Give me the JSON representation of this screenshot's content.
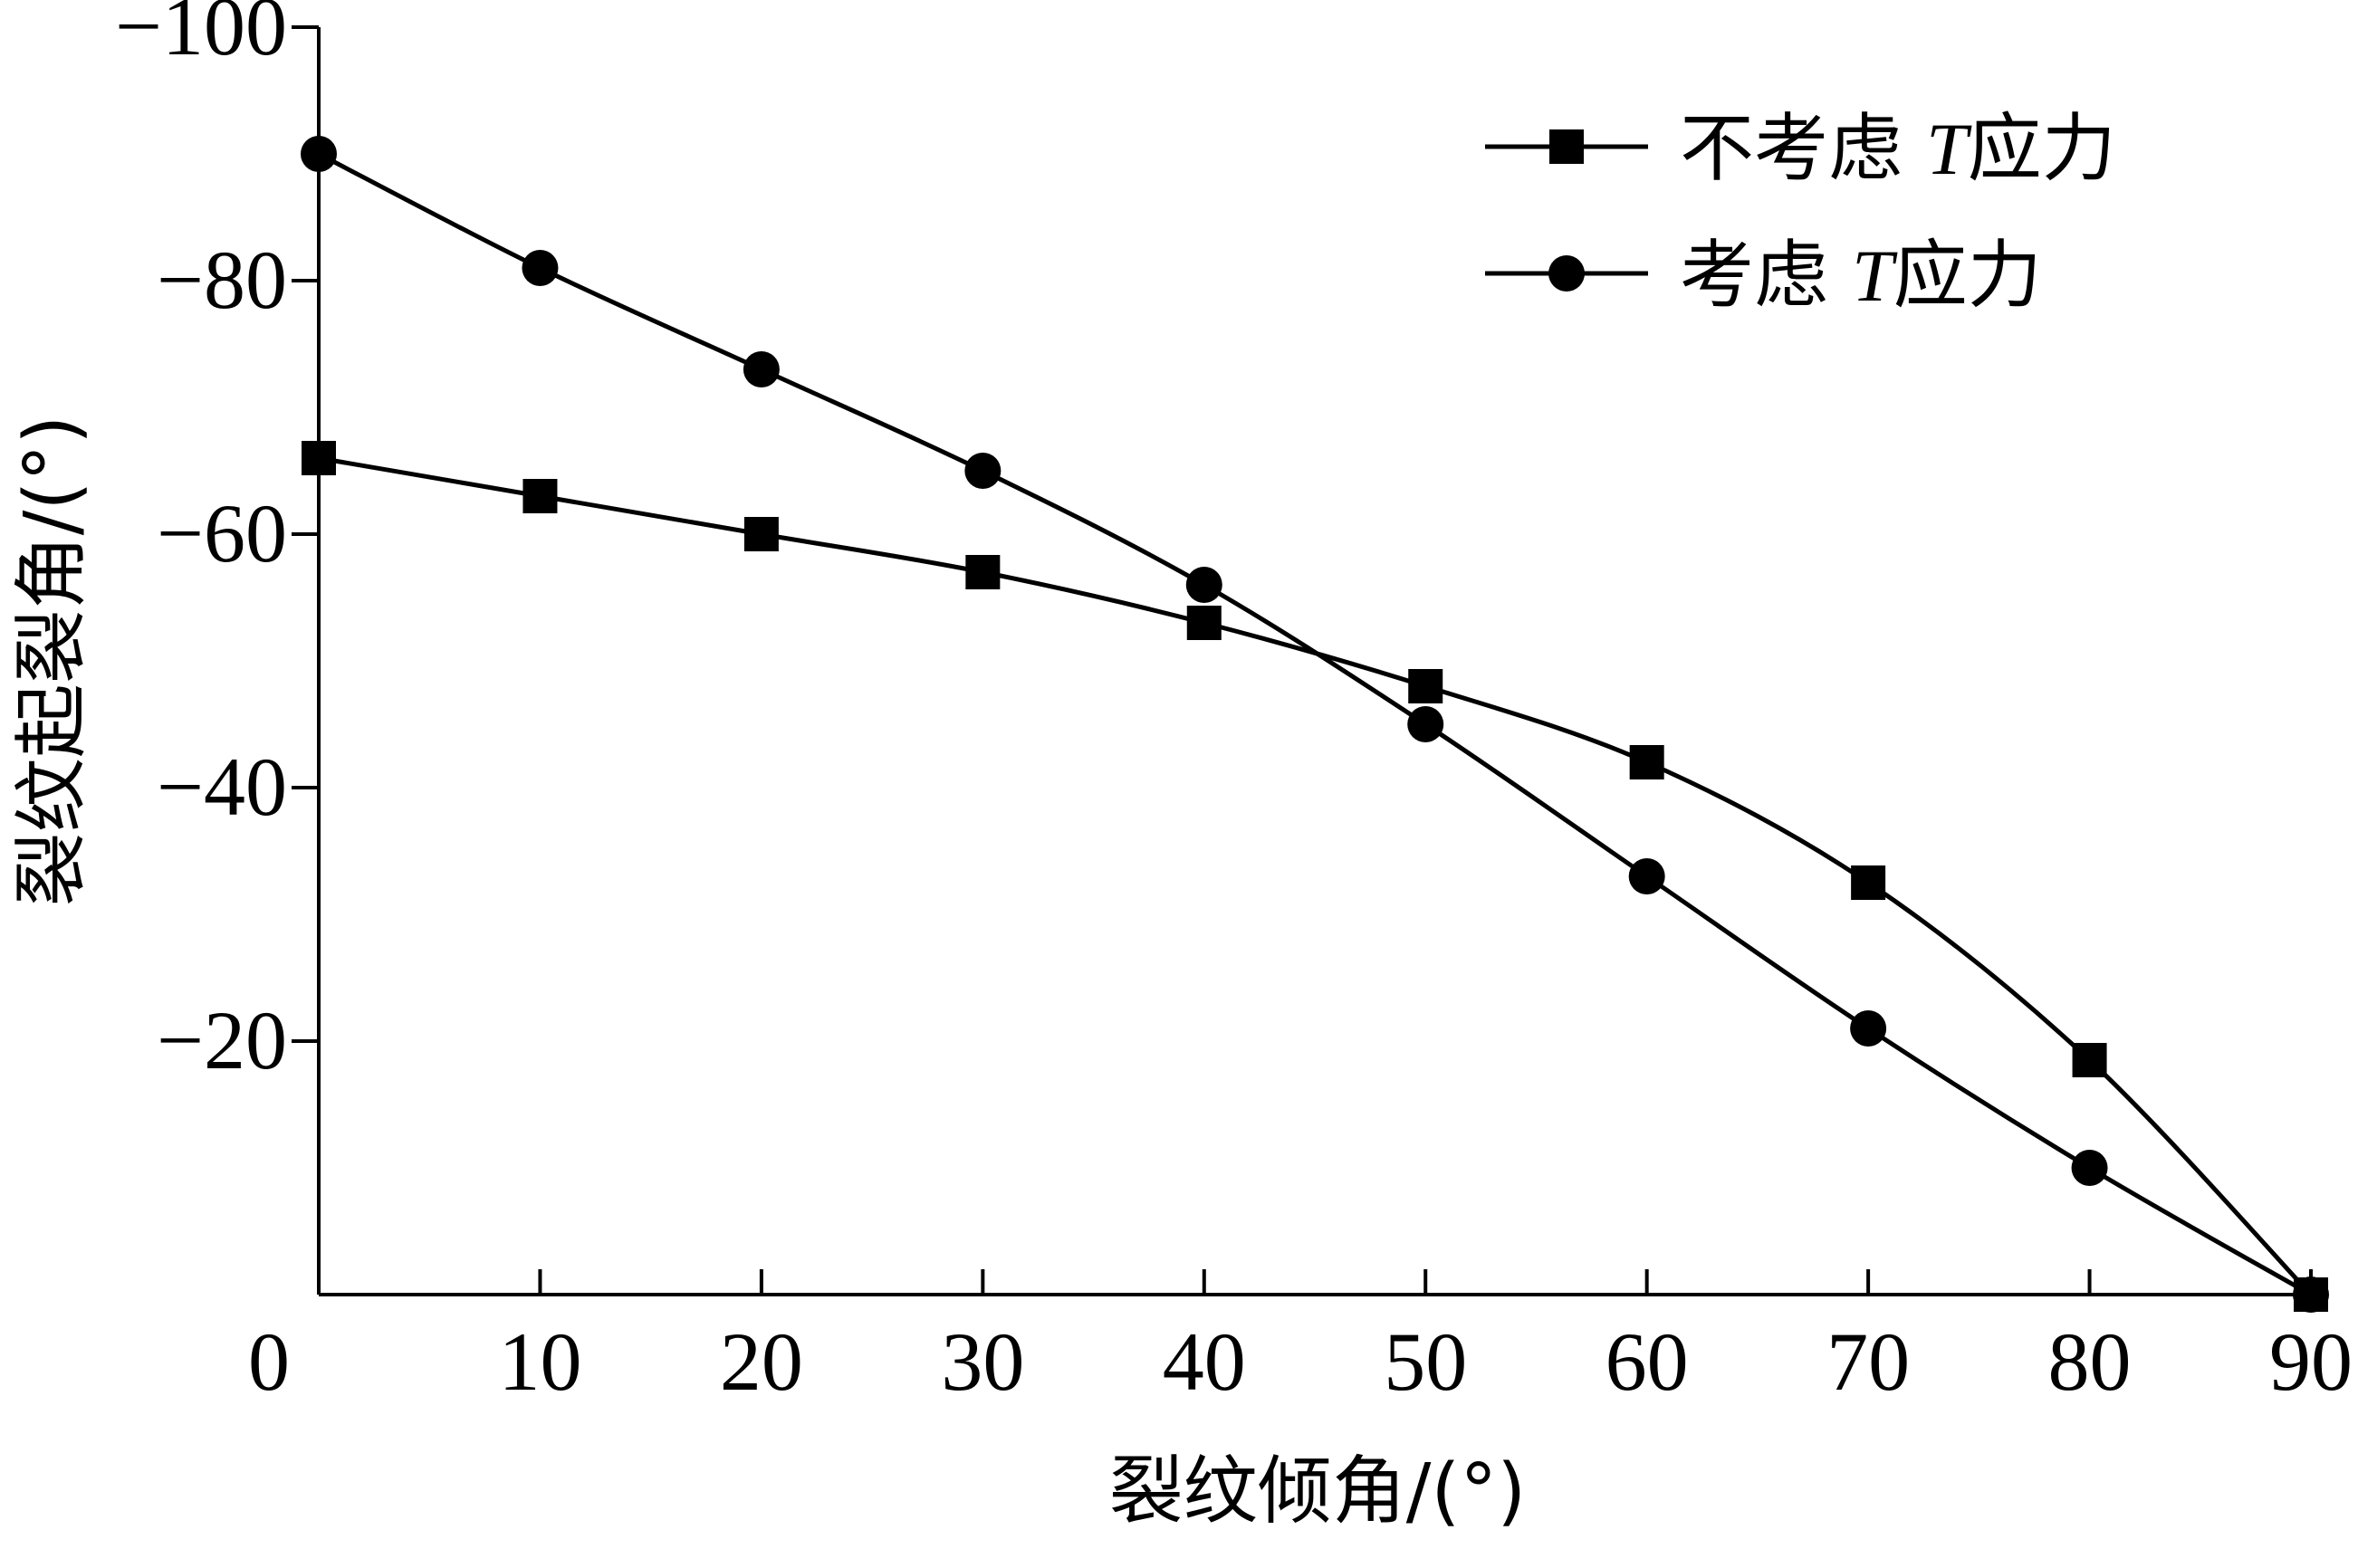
{
  "chart_data": {
    "type": "line",
    "xlabel": "裂纹倾角/(°)",
    "ylabel": "裂纹起裂角/(°)",
    "xlim": [
      0,
      90
    ],
    "ylim": [
      0,
      -100
    ],
    "x_ticks": [
      0,
      10,
      20,
      30,
      40,
      50,
      60,
      70,
      80,
      90
    ],
    "y_ticks": [
      -20,
      -40,
      -60,
      -80,
      -100
    ],
    "y_tick_labels": [
      "−20",
      "−40",
      "−60",
      "−80",
      "−100"
    ],
    "grid": false,
    "legend_position": "top-right",
    "series": [
      {
        "name_prefix": "不考虑 ",
        "name_var": "T",
        "name_suffix": "应力",
        "marker": "square",
        "x": [
          0,
          10,
          20,
          30,
          40,
          50,
          60,
          70,
          80,
          90
        ],
        "values": [
          -66,
          -63,
          -60,
          -57,
          -53,
          -48,
          -42,
          -32.5,
          -18.5,
          0
        ]
      },
      {
        "name_prefix": "考虑 ",
        "name_var": "T",
        "name_suffix": "应力",
        "marker": "circle",
        "x": [
          0,
          10,
          20,
          30,
          40,
          50,
          60,
          70,
          80,
          90
        ],
        "values": [
          -90,
          -81,
          -73,
          -65,
          -56,
          -45,
          -33,
          -21,
          -10,
          0
        ]
      }
    ]
  }
}
